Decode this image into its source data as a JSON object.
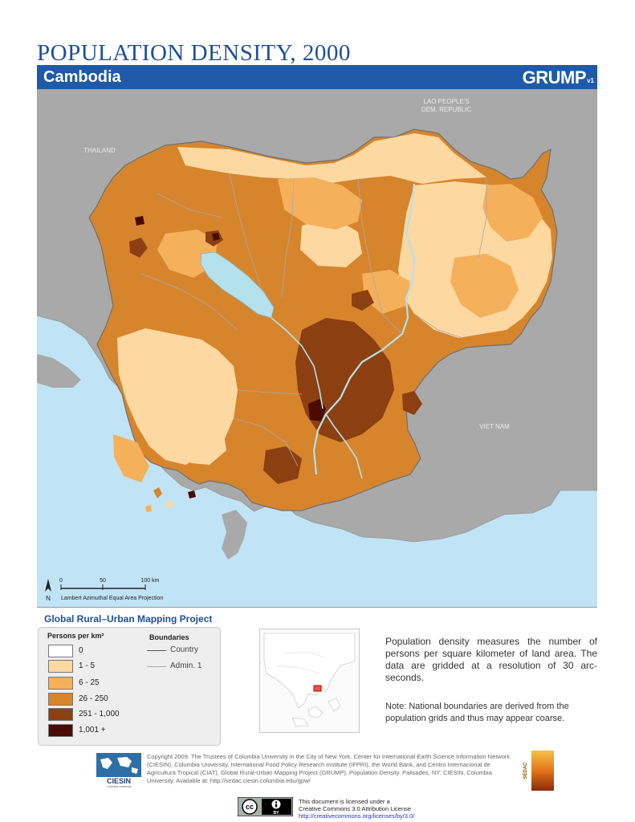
{
  "header": {
    "title": "POPULATION DENSITY, 2000",
    "country": "Cambodia",
    "brand": "GRUMP",
    "brand_version": "v1"
  },
  "map": {
    "neighbors": {
      "thailand": "THAILAND",
      "laos_line1": "LAO PEOPLE'S",
      "laos_line2": "DEM. REPUBLIC",
      "vietnam": "VIET NAM"
    },
    "scale": {
      "tick0": "0",
      "tick1": "50",
      "tick2": "100 km",
      "north": "N",
      "projection": "Lambert Azimuthal Equal Area Projection"
    },
    "colors": {
      "ocean": "#c0e4f5",
      "neighbor_land": "#a9a9a9",
      "lake": "#b5e1ec"
    }
  },
  "legend": {
    "project": "Global Rural–Urban Mapping Project",
    "density_header": "Persons per km²",
    "classes": [
      {
        "label": "0",
        "color": "#ffffff"
      },
      {
        "label": "1 - 5",
        "color": "#fdd8a1"
      },
      {
        "label": "6 - 25",
        "color": "#f5b05b"
      },
      {
        "label": "26 - 250",
        "color": "#d6852d"
      },
      {
        "label": "251 - 1,000",
        "color": "#8c3f10"
      },
      {
        "label": "1,001 +",
        "color": "#4a0b05"
      }
    ],
    "boundaries_header": "Boundaries",
    "boundaries": [
      {
        "label": "Country",
        "color": "#555555"
      },
      {
        "label": "Admin. 1",
        "color": "#aaaaaa"
      }
    ]
  },
  "description": "Population density measures the number of persons per square kilometer of land area. The data are gridded at a resolution of 30 arc-seconds.",
  "note": "Note: National boundaries are derived from the population grids and thus may appear coarse.",
  "footer": {
    "ciesin": "CIESIN",
    "ciesin_sub": "Columbia University",
    "sedac": "SEDAC",
    "copyright": "Copyright 2009. The Trustees of Columbia University in the City of New York. Center for International Earth Science Information Network (CIESIN), Columbia University, International Food Policy Research Institute (IFPRI), the World Bank, and Centro Internacional de Agricultura Tropical (CIAT). Global Rural-Urban Mapping Project (GRUMP), Population Density. Palisades, NY: CIESIN, Columbia University. Available at: http://sedac.ciesin.columbia.edu/gpw/",
    "cc_text": "cc",
    "cc_by": "BY",
    "license_line1": "This document is licensed under a",
    "license_line2": "Creative Commons 3.0 Attribution License",
    "license_url": "http://creativecommons.org/licenses/by/3.0/"
  }
}
